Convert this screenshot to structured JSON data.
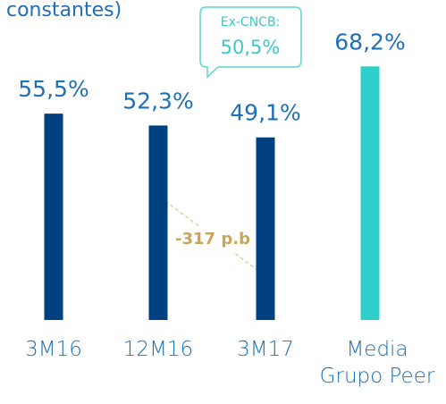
{
  "chart_data": {
    "type": "bar",
    "title": "€ constantes)",
    "categories": [
      "3M16",
      "12M16",
      "3M17",
      "Media Grupo Peer"
    ],
    "values": [
      55.5,
      52.3,
      49.1,
      68.2
    ],
    "value_labels": [
      "55,5%",
      "52,3%",
      "49,1%",
      "68,2%"
    ],
    "colors": [
      "#003f80",
      "#003f80",
      "#003f80",
      "#2ecfcb"
    ],
    "annotations": [
      {
        "text": "Ex-CNCB:",
        "value_label": "50,5%"
      },
      {
        "text": "-317 p.b"
      }
    ]
  }
}
